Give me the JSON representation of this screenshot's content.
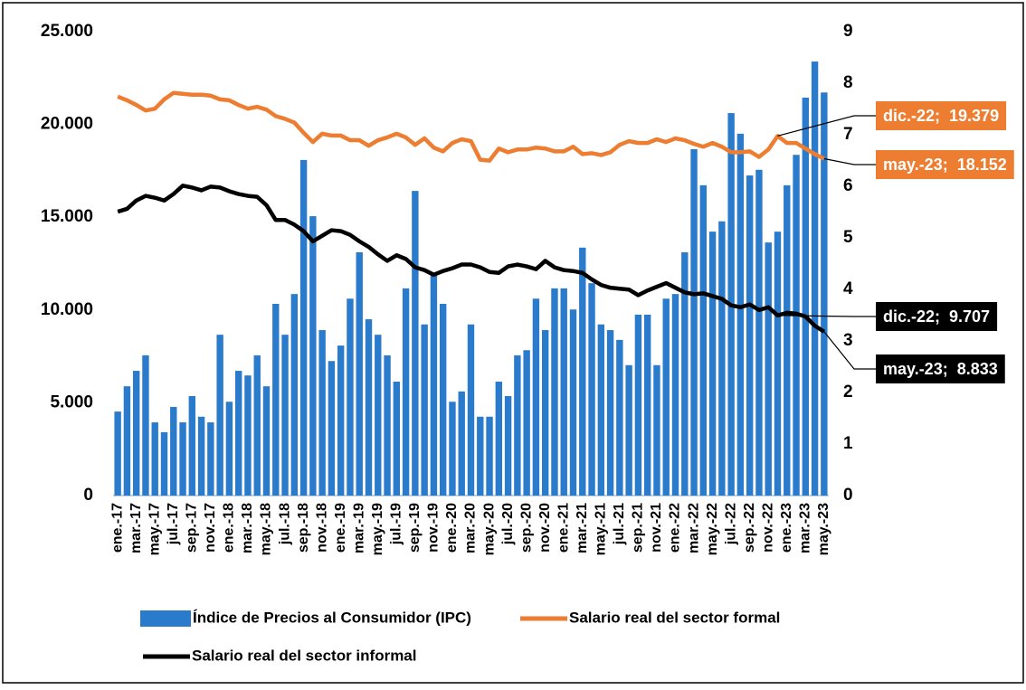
{
  "chart_data": {
    "type": "bar",
    "categories": [
      "ene.-17",
      null,
      "mar.-17",
      null,
      "may.-17",
      null,
      "jul.-17",
      null,
      "sep.-17",
      null,
      "nov.-17",
      null,
      "ene.-18",
      null,
      "mar.-18",
      null,
      "may.-18",
      null,
      "jul.-18",
      null,
      "sep.-18",
      null,
      "nov.-18",
      null,
      "ene.-19",
      null,
      "mar.-19",
      null,
      "may.-19",
      null,
      "jul.-19",
      null,
      "sep.-19",
      null,
      "nov.-19",
      null,
      "ene.-20",
      null,
      "mar.-20",
      null,
      "may.-20",
      null,
      "jul.-20",
      null,
      "sep.-20",
      null,
      "nov.-20",
      null,
      "ene.-21",
      null,
      "mar.-21",
      null,
      "may.-21",
      null,
      "jul.-21",
      null,
      "sep.-21",
      null,
      "nov.-21",
      null,
      "ene.-22",
      null,
      "mar.-22",
      null,
      "may.-22",
      null,
      "jul.-22",
      null,
      "sep.-22",
      null,
      "nov.-22",
      null,
      "ene.-23",
      null,
      "mar.-23",
      null,
      "may.-23"
    ],
    "series": [
      {
        "name": "Índice de Precios al Consumidor (IPC)",
        "type": "bar",
        "axis": "y2",
        "color": "#2b7bcc",
        "values": [
          1.63,
          2.12,
          2.42,
          2.72,
          1.42,
          1.23,
          1.72,
          1.42,
          1.93,
          1.53,
          1.42,
          3.12,
          1.82,
          2.42,
          2.33,
          2.72,
          2.12,
          3.72,
          3.12,
          3.91,
          6.51,
          5.42,
          3.21,
          2.61,
          2.91,
          3.82,
          4.72,
          3.42,
          3.12,
          2.72,
          2.21,
          4.02,
          5.91,
          3.32,
          4.32,
          3.72,
          1.82,
          2.02,
          3.32,
          1.53,
          1.53,
          2.21,
          1.93,
          2.72,
          2.82,
          3.82,
          3.21,
          4.02,
          4.02,
          3.61,
          4.81,
          4.12,
          3.32,
          3.21,
          3.02,
          2.53,
          3.51,
          3.51,
          2.53,
          3.82,
          3.91,
          4.72,
          6.72,
          6.02,
          5.12,
          5.32,
          7.42,
          7.02,
          6.21,
          6.32,
          4.91,
          5.12,
          6.02,
          6.61,
          7.72,
          8.42,
          7.82
        ]
      },
      {
        "name": "Salario real del sector formal",
        "type": "line",
        "color": "#ed7d31",
        "values": [
          21500,
          21300,
          21050,
          20750,
          20850,
          21350,
          21700,
          21650,
          21600,
          21600,
          21550,
          21350,
          21300,
          21050,
          20850,
          20950,
          20800,
          20450,
          20300,
          20100,
          19550,
          19050,
          19500,
          19400,
          19400,
          19150,
          19150,
          18850,
          19150,
          19300,
          19500,
          19300,
          18900,
          19250,
          18750,
          18550,
          19000,
          19200,
          19100,
          18100,
          18050,
          18700,
          18500,
          18650,
          18650,
          18750,
          18700,
          18550,
          18550,
          18800,
          18400,
          18450,
          18350,
          18500,
          18900,
          19100,
          19000,
          19000,
          19200,
          19050,
          19250,
          19150,
          18950,
          18800,
          19000,
          18800,
          18500,
          18500,
          18550,
          18250,
          18650,
          19379,
          19000,
          19000,
          18700,
          18400,
          18152
        ],
        "value_labels": [
          null,
          null,
          null,
          null,
          null,
          null,
          null,
          null,
          null,
          null,
          null,
          null,
          null,
          null,
          null,
          null,
          null,
          null,
          null,
          null,
          null,
          null,
          null,
          null,
          null,
          null,
          null,
          null,
          null,
          null,
          null,
          null,
          null,
          null,
          null,
          null,
          null,
          null,
          null,
          null,
          null,
          null,
          null,
          null,
          null,
          null,
          null,
          null,
          null,
          null,
          null,
          null,
          null,
          null,
          null,
          null,
          null,
          null,
          null,
          null,
          null,
          null,
          null,
          null,
          null,
          null,
          null,
          null,
          null,
          null,
          null,
          "dic.-22;  19.379",
          null,
          null,
          null,
          null,
          "may.-23;  18.152"
        ]
      },
      {
        "name": "Salario real del sector informal",
        "type": "line",
        "color": "#000000",
        "values": [
          15300,
          15450,
          15900,
          16150,
          16050,
          15900,
          16250,
          16700,
          16600,
          16450,
          16650,
          16600,
          16400,
          16250,
          16150,
          16100,
          15650,
          14850,
          14850,
          14600,
          14250,
          13700,
          14000,
          14300,
          14250,
          14050,
          13700,
          13400,
          13000,
          12650,
          12950,
          12750,
          12300,
          12150,
          11900,
          12100,
          12250,
          12450,
          12450,
          12300,
          12050,
          12000,
          12350,
          12450,
          12350,
          12200,
          12650,
          12300,
          12150,
          12100,
          12000,
          11650,
          11350,
          11200,
          11150,
          11100,
          10800,
          11050,
          11250,
          11450,
          11200,
          10950,
          10850,
          10900,
          10750,
          10600,
          10250,
          10150,
          10300,
          10000,
          10150,
          9707,
          9850,
          9800,
          9650,
          9150,
          8833
        ],
        "value_labels": [
          null,
          null,
          null,
          null,
          null,
          null,
          null,
          null,
          null,
          null,
          null,
          null,
          null,
          null,
          null,
          null,
          null,
          null,
          null,
          null,
          null,
          null,
          null,
          null,
          null,
          null,
          null,
          null,
          null,
          null,
          null,
          null,
          null,
          null,
          null,
          null,
          null,
          null,
          null,
          null,
          null,
          null,
          null,
          null,
          null,
          null,
          null,
          null,
          null,
          null,
          null,
          null,
          null,
          null,
          null,
          null,
          null,
          null,
          null,
          null,
          null,
          null,
          null,
          null,
          null,
          null,
          null,
          null,
          null,
          null,
          null,
          "dic.-22;  9.707",
          null,
          null,
          null,
          null,
          "may.-23;  8.833"
        ]
      }
    ],
    "ylim": [
      0,
      25000
    ],
    "yticks": [
      0,
      {
        "value": 5000,
        "label": "5.000"
      },
      {
        "value": 10000,
        "label": "10.000"
      },
      {
        "value": 15000,
        "label": "15.000"
      },
      {
        "value": 20000,
        "label": "20.000"
      },
      {
        "value": 25000,
        "label": "25.000"
      }
    ],
    "y2lim": [
      0,
      9
    ],
    "y2ticks": [
      0,
      1,
      2,
      3,
      4,
      5,
      6,
      7,
      8,
      9
    ],
    "grid": false,
    "legend": "bottom"
  }
}
